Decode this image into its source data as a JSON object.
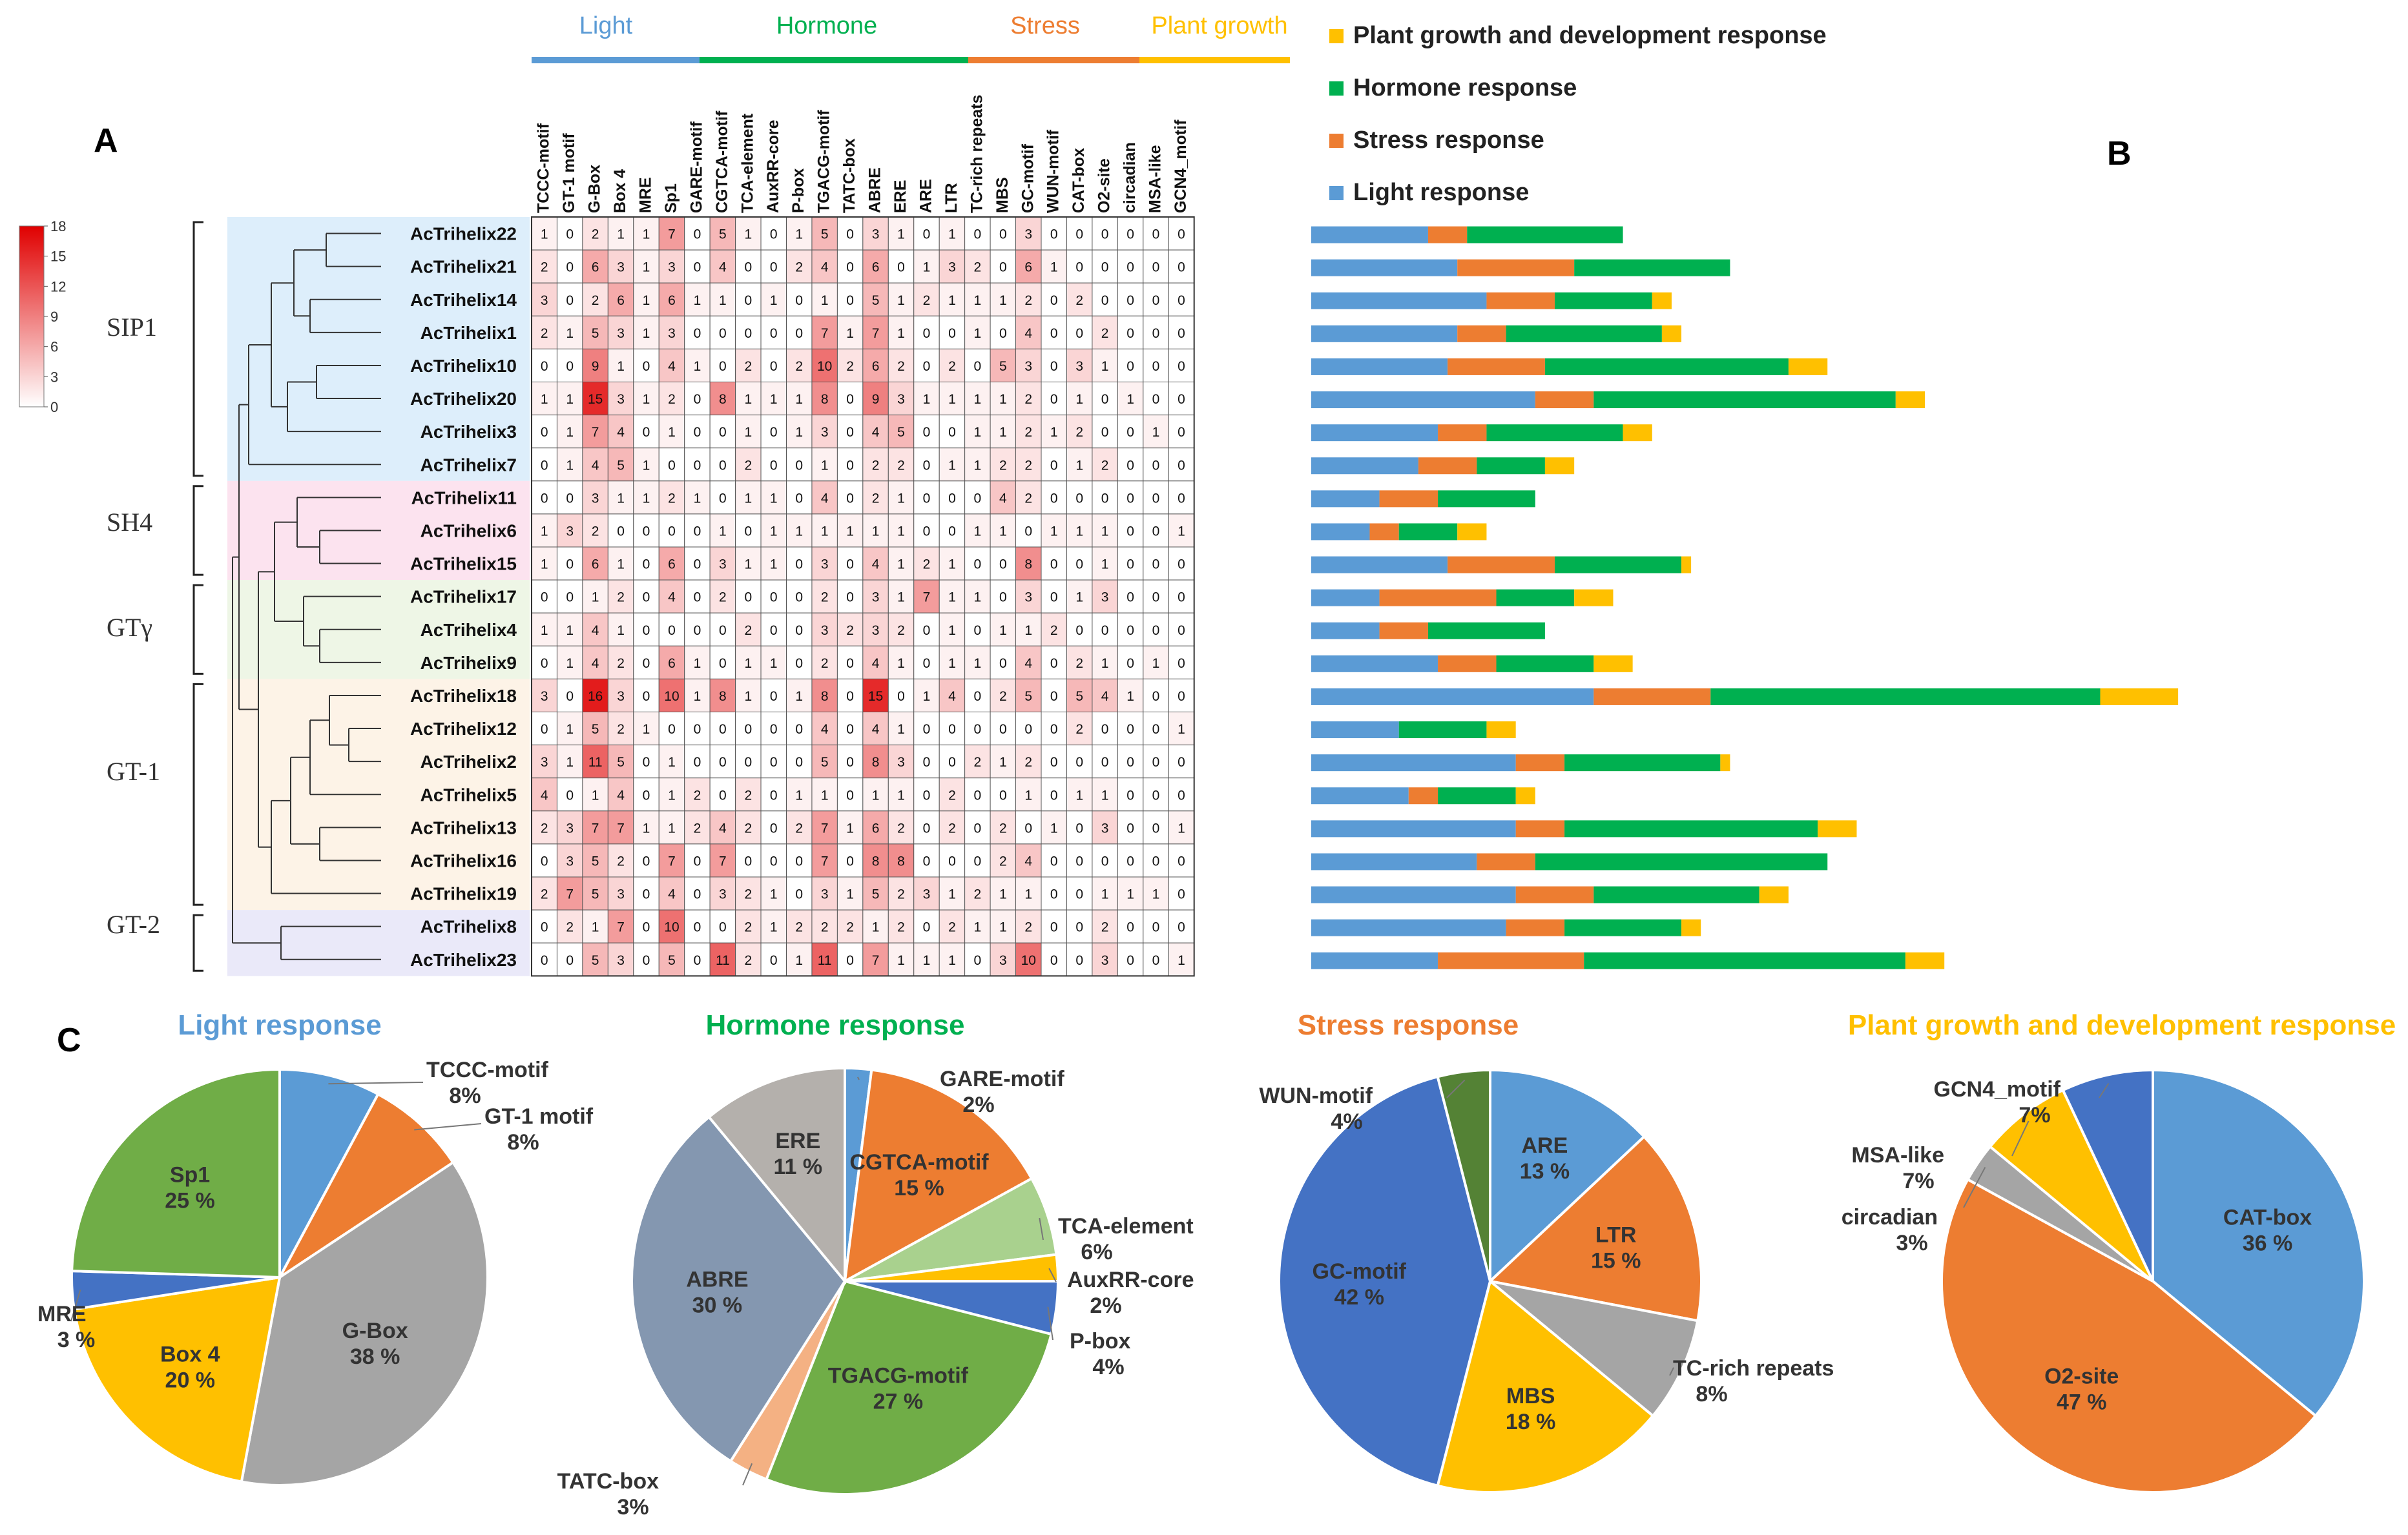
{
  "panel_labels": {
    "a": "A",
    "b": "B",
    "c": "C"
  },
  "colors": {
    "light": "#5B9BD5",
    "hormone": "#00B050",
    "stress": "#ED7D31",
    "growth": "#FFC000",
    "tree_bg": [
      "#DDEEFB",
      "#FCE3EF",
      "#EEF6E6",
      "#FDF3E7",
      "#EAE9F9"
    ],
    "heat_low": "#FFFFFF",
    "heat_high": "#E00000"
  },
  "categories": {
    "top": [
      {
        "label": "Light",
        "color": "#5B9BD5"
      },
      {
        "label": "Hormone",
        "color": "#00B050"
      },
      {
        "label": "Stress",
        "color": "#ED7D31"
      },
      {
        "label": "Plant growth",
        "color": "#FFC000"
      }
    ],
    "legend": [
      {
        "label": "Plant growth and development response",
        "color": "#FFC000"
      },
      {
        "label": "Hormone response",
        "color": "#00B050"
      },
      {
        "label": "Stress response",
        "color": "#ED7D31"
      },
      {
        "label": "Light response",
        "color": "#5B9BD5"
      }
    ]
  },
  "colorbar": {
    "ticks": [
      "18",
      "15",
      "12",
      "9",
      "6",
      "3",
      "0"
    ],
    "min": 0,
    "max": 18
  },
  "subfamilies": [
    "SIP1",
    "SH4",
    "GTγ",
    "GT-1",
    "GT-2"
  ],
  "chart_data": [
    {
      "type": "heatmap",
      "title": "",
      "columns": [
        "TCCC-motif",
        "GT-1 motif",
        "G-Box",
        "Box 4",
        "MRE",
        "Sp1",
        "GARE-motif",
        "CGTCA-motif",
        "TCA-element",
        "AuxRR-core",
        "P-box",
        "TGACG-motif",
        "TATC-box",
        "ABRE",
        "ERE",
        "ARE",
        "LTR",
        "TC-rich repeats",
        "MBS",
        "GC-motif",
        "WUN-motif",
        "CAT-box",
        "O2-site",
        "circadian",
        "MSA-like",
        "GCN4_motif"
      ],
      "rows": [
        "AcTrihelix22",
        "AcTrihelix21",
        "AcTrihelix14",
        "AcTrihelix1",
        "AcTrihelix10",
        "AcTrihelix20",
        "AcTrihelix3",
        "AcTrihelix7",
        "AcTrihelix11",
        "AcTrihelix6",
        "AcTrihelix15",
        "AcTrihelix17",
        "AcTrihelix4",
        "AcTrihelix9",
        "AcTrihelix18",
        "AcTrihelix12",
        "AcTrihelix2",
        "AcTrihelix5",
        "AcTrihelix13",
        "AcTrihelix16",
        "AcTrihelix19",
        "AcTrihelix8",
        "AcTrihelix23"
      ],
      "values": [
        [
          1,
          0,
          2,
          1,
          1,
          7,
          0,
          5,
          1,
          0,
          1,
          5,
          0,
          3,
          1,
          0,
          1,
          0,
          0,
          3,
          0,
          0,
          0,
          0,
          0,
          0
        ],
        [
          2,
          0,
          6,
          3,
          1,
          3,
          0,
          4,
          0,
          0,
          2,
          4,
          0,
          6,
          0,
          1,
          3,
          2,
          0,
          6,
          1,
          0,
          0,
          0,
          0,
          0
        ],
        [
          3,
          0,
          2,
          6,
          1,
          6,
          1,
          1,
          0,
          1,
          0,
          1,
          0,
          5,
          1,
          2,
          1,
          1,
          1,
          2,
          0,
          2,
          0,
          0,
          0,
          0
        ],
        [
          2,
          1,
          5,
          3,
          1,
          3,
          0,
          0,
          0,
          0,
          0,
          7,
          1,
          7,
          1,
          0,
          0,
          1,
          0,
          4,
          0,
          0,
          2,
          0,
          0,
          0
        ],
        [
          0,
          0,
          9,
          1,
          0,
          4,
          1,
          0,
          2,
          0,
          2,
          10,
          2,
          6,
          2,
          0,
          2,
          0,
          5,
          3,
          0,
          3,
          1,
          0,
          0,
          0
        ],
        [
          1,
          1,
          15,
          3,
          1,
          2,
          0,
          8,
          1,
          1,
          1,
          8,
          0,
          9,
          3,
          1,
          1,
          1,
          1,
          2,
          0,
          1,
          0,
          1,
          0,
          0
        ],
        [
          0,
          1,
          7,
          4,
          0,
          1,
          0,
          0,
          1,
          0,
          1,
          3,
          0,
          4,
          5,
          0,
          0,
          1,
          1,
          2,
          1,
          2,
          0,
          0,
          1,
          0
        ],
        [
          0,
          1,
          4,
          5,
          1,
          0,
          0,
          0,
          2,
          0,
          0,
          1,
          0,
          2,
          2,
          0,
          1,
          1,
          2,
          2,
          0,
          1,
          2,
          0,
          0,
          0
        ],
        [
          0,
          0,
          3,
          1,
          1,
          2,
          1,
          0,
          1,
          1,
          0,
          4,
          0,
          2,
          1,
          0,
          0,
          0,
          4,
          2,
          0,
          0,
          0,
          0,
          0,
          0
        ],
        [
          1,
          3,
          2,
          0,
          0,
          0,
          0,
          1,
          0,
          1,
          1,
          1,
          1,
          1,
          1,
          0,
          0,
          1,
          1,
          0,
          1,
          1,
          1,
          0,
          0,
          1
        ],
        [
          1,
          0,
          6,
          1,
          0,
          6,
          0,
          3,
          1,
          1,
          0,
          3,
          0,
          4,
          1,
          2,
          1,
          0,
          0,
          8,
          0,
          0,
          1,
          0,
          0,
          0
        ],
        [
          0,
          0,
          1,
          2,
          0,
          4,
          0,
          2,
          0,
          0,
          0,
          2,
          0,
          3,
          1,
          7,
          1,
          1,
          0,
          3,
          0,
          1,
          3,
          0,
          0,
          0
        ],
        [
          1,
          1,
          4,
          1,
          0,
          0,
          0,
          0,
          2,
          0,
          0,
          3,
          2,
          3,
          2,
          0,
          1,
          0,
          1,
          1,
          2,
          0,
          0,
          0,
          0,
          0
        ],
        [
          0,
          1,
          4,
          2,
          0,
          6,
          1,
          0,
          1,
          1,
          0,
          2,
          0,
          4,
          1,
          0,
          1,
          1,
          0,
          4,
          0,
          2,
          1,
          0,
          1,
          0
        ],
        [
          3,
          0,
          16,
          3,
          0,
          10,
          1,
          8,
          1,
          0,
          1,
          8,
          0,
          15,
          0,
          1,
          4,
          0,
          2,
          5,
          0,
          5,
          4,
          1,
          0,
          0
        ],
        [
          0,
          1,
          5,
          2,
          1,
          0,
          0,
          0,
          0,
          0,
          0,
          4,
          0,
          4,
          1,
          0,
          0,
          0,
          0,
          0,
          0,
          2,
          0,
          0,
          0,
          1
        ],
        [
          3,
          1,
          11,
          5,
          0,
          1,
          0,
          0,
          0,
          0,
          0,
          5,
          0,
          8,
          3,
          0,
          0,
          2,
          1,
          2,
          0,
          0,
          0,
          0,
          0,
          0
        ],
        [
          4,
          0,
          1,
          4,
          0,
          1,
          2,
          0,
          2,
          0,
          1,
          1,
          0,
          1,
          1,
          0,
          2,
          0,
          0,
          1,
          0,
          1,
          1,
          0,
          0,
          0
        ],
        [
          2,
          3,
          7,
          7,
          1,
          1,
          2,
          4,
          2,
          0,
          2,
          7,
          1,
          6,
          2,
          0,
          2,
          0,
          2,
          0,
          1,
          0,
          3,
          0,
          0,
          1
        ],
        [
          0,
          3,
          5,
          2,
          0,
          7,
          0,
          7,
          0,
          0,
          0,
          7,
          0,
          8,
          8,
          0,
          0,
          0,
          2,
          4,
          0,
          0,
          0,
          0,
          0,
          0
        ],
        [
          2,
          7,
          5,
          3,
          0,
          4,
          0,
          3,
          2,
          1,
          0,
          3,
          1,
          5,
          2,
          3,
          1,
          2,
          1,
          1,
          0,
          0,
          1,
          1,
          1,
          0
        ],
        [
          0,
          2,
          1,
          7,
          0,
          10,
          0,
          0,
          2,
          1,
          2,
          2,
          2,
          1,
          2,
          0,
          2,
          1,
          1,
          2,
          0,
          0,
          2,
          0,
          0,
          0
        ],
        [
          0,
          0,
          5,
          3,
          0,
          5,
          0,
          11,
          2,
          0,
          1,
          11,
          0,
          7,
          1,
          1,
          1,
          0,
          3,
          10,
          0,
          0,
          3,
          0,
          0,
          1
        ]
      ],
      "column_groups": [
        {
          "label": "Light",
          "span": [
            0,
            5
          ]
        },
        {
          "label": "Hormone",
          "span": [
            6,
            14
          ]
        },
        {
          "label": "Stress",
          "span": [
            15,
            20
          ]
        },
        {
          "label": "Plant growth",
          "span": [
            21,
            25
          ]
        }
      ],
      "color_range": [
        0,
        18
      ]
    },
    {
      "type": "bar",
      "title": "",
      "stacked": true,
      "orientation": "horizontal",
      "categories": [
        "AcTrihelix22",
        "AcTrihelix21",
        "AcTrihelix14",
        "AcTrihelix1",
        "AcTrihelix10",
        "AcTrihelix20",
        "AcTrihelix3",
        "AcTrihelix7",
        "AcTrihelix11",
        "AcTrihelix6",
        "AcTrihelix15",
        "AcTrihelix17",
        "AcTrihelix4",
        "AcTrihelix9",
        "AcTrihelix18",
        "AcTrihelix12",
        "AcTrihelix2",
        "AcTrihelix5",
        "AcTrihelix13",
        "AcTrihelix16",
        "AcTrihelix19",
        "AcTrihelix8",
        "AcTrihelix23"
      ],
      "series": [
        {
          "name": "Light response",
          "values": [
            12,
            15,
            18,
            15,
            14,
            23,
            13,
            11,
            7,
            6,
            14,
            7,
            7,
            13,
            29,
            9,
            21,
            10,
            21,
            17,
            21,
            20,
            13
          ]
        },
        {
          "name": "Stress response",
          "values": [
            4,
            12,
            7,
            5,
            10,
            6,
            5,
            6,
            6,
            3,
            11,
            12,
            5,
            6,
            12,
            0,
            5,
            3,
            5,
            6,
            8,
            6,
            15
          ]
        },
        {
          "name": "Hormone response",
          "values": [
            16,
            16,
            10,
            16,
            25,
            31,
            14,
            7,
            10,
            6,
            13,
            8,
            12,
            10,
            40,
            9,
            16,
            8,
            26,
            30,
            17,
            12,
            33
          ]
        },
        {
          "name": "Plant growth and development response",
          "values": [
            0,
            0,
            2,
            2,
            4,
            3,
            3,
            3,
            0,
            3,
            1,
            4,
            0,
            4,
            8,
            3,
            1,
            2,
            4,
            0,
            3,
            2,
            4
          ]
        }
      ]
    },
    {
      "type": "pie",
      "title": "Light response",
      "labels": [
        "TCCC-motif",
        "GT-1 motif",
        "G-Box",
        "Box 4",
        "MRE",
        "Sp1"
      ],
      "values": [
        8,
        8,
        38,
        20,
        3,
        25
      ],
      "display": [
        "8%",
        "8%",
        "38 %",
        "20 %",
        "3 %",
        "25 %"
      ],
      "colors": [
        "#5B9BD5",
        "#ED7D31",
        "#A5A5A5",
        "#FFC000",
        "#4472C4",
        "#70AD47"
      ]
    },
    {
      "type": "pie",
      "title": "Hormone  response",
      "labels": [
        "GARE-motif",
        "CGTCA-motif",
        "TCA-element",
        "AuxRR-core",
        "P-box",
        "TGACG-motif",
        "TATC-box",
        "ABRE",
        "ERE"
      ],
      "values": [
        2,
        15,
        6,
        2,
        4,
        27,
        3,
        30,
        11
      ],
      "display": [
        "2%",
        "15 %",
        "6%",
        "2%",
        "4%",
        "27 %",
        "3%",
        "30 %",
        "11 %"
      ],
      "colors": [
        "#5B9BD5",
        "#ED7D31",
        "#A9D18E",
        "#FFC000",
        "#4472C4",
        "#70AD47",
        "#F4B183",
        "#8497B0",
        "#B4B0AC"
      ]
    },
    {
      "type": "pie",
      "title": "Stress response",
      "labels": [
        "ARE",
        "LTR",
        "TC-rich repeats",
        "MBS",
        "GC-motif",
        "WUN-motif"
      ],
      "values": [
        13,
        15,
        8,
        18,
        42,
        4
      ],
      "display": [
        "13 %",
        "15 %",
        "8%",
        "18 %",
        "42 %",
        "4%"
      ],
      "colors": [
        "#5B9BD5",
        "#ED7D31",
        "#A5A5A5",
        "#FFC000",
        "#4472C4",
        "#548235"
      ]
    },
    {
      "type": "pie",
      "title": "Plant growth and development response",
      "labels": [
        "CAT-box",
        "O2-site",
        "circadian",
        "MSA-like",
        "GCN4_motif"
      ],
      "values": [
        36,
        47,
        3,
        7,
        7
      ],
      "display": [
        "36 %",
        "47 %",
        "3%",
        "7%",
        "7%"
      ],
      "colors": [
        "#5B9BD5",
        "#ED7D31",
        "#A5A5A5",
        "#FFC000",
        "#4472C4"
      ]
    }
  ]
}
